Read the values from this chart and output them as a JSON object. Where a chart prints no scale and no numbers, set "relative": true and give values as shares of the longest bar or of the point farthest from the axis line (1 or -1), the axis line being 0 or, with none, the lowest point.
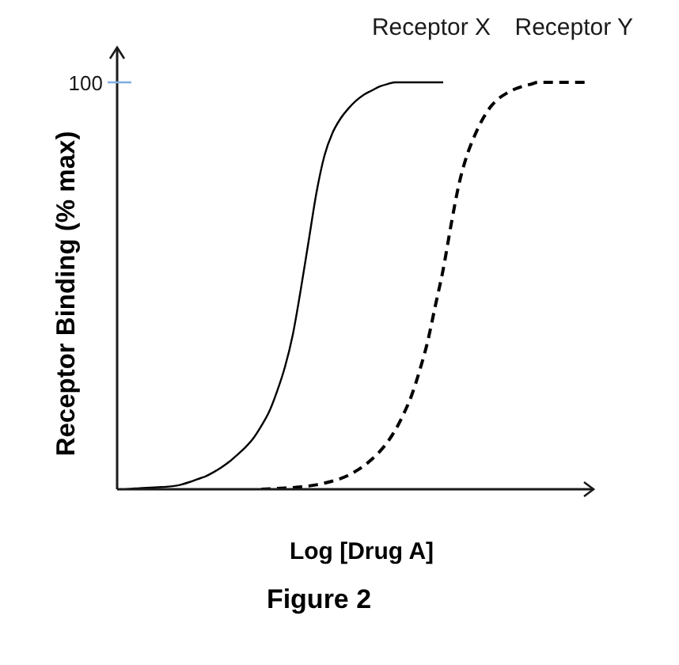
{
  "chart_data": {
    "type": "line",
    "relative": true,
    "xlabel": "Log [Drug A]",
    "ylabel": "Receptor Binding (% max)",
    "annotations": [
      "100",
      "Figure 2"
    ],
    "categories": [
      null,
      null,
      null,
      null,
      null,
      null,
      null,
      null,
      null,
      null,
      null,
      null,
      null,
      null,
      null,
      null,
      null,
      null,
      null,
      null,
      null,
      null,
      null,
      null,
      null,
      null,
      null,
      null,
      null,
      null,
      null,
      null,
      null,
      null,
      null,
      null,
      null,
      null,
      null,
      null,
      null,
      null,
      null,
      null,
      null,
      null,
      null,
      null,
      null,
      null,
      null,
      null,
      null,
      null,
      null,
      null,
      null,
      null,
      null,
      null
    ],
    "marker": "none",
    "series": [
      {
        "name": "Receptor X",
        "color": "#000000",
        "line_style": "solid",
        "values": [
          0,
          0.002,
          0.003,
          0.004,
          0.005,
          0.006,
          0.008,
          0.012,
          0.018,
          0.025,
          0.032,
          0.042,
          0.054,
          0.068,
          0.085,
          0.103,
          0.125,
          0.155,
          0.19,
          0.24,
          0.3,
          0.38,
          0.49,
          0.61,
          0.73,
          0.82,
          0.875,
          0.91,
          0.935,
          0.955,
          0.97,
          0.98,
          0.99,
          0.996,
          1,
          1,
          1,
          1,
          1,
          1,
          1,
          null,
          null,
          null,
          null,
          null,
          null,
          null,
          null,
          null,
          null,
          null,
          null,
          null,
          null,
          null,
          null,
          null,
          null,
          null
        ]
      },
      {
        "name": "Receptor Y",
        "color": "#000000",
        "line_style": "dashed",
        "values": [
          null,
          null,
          null,
          null,
          null,
          null,
          null,
          null,
          null,
          null,
          null,
          null,
          null,
          null,
          null,
          null,
          null,
          0,
          0.001,
          0.002,
          0.003,
          0.004,
          0.006,
          0.008,
          0.011,
          0.015,
          0.02,
          0.026,
          0.034,
          0.045,
          0.058,
          0.074,
          0.093,
          0.117,
          0.147,
          0.185,
          0.23,
          0.29,
          0.36,
          0.45,
          0.54,
          0.65,
          0.75,
          0.82,
          0.87,
          0.91,
          0.94,
          0.96,
          0.973,
          0.983,
          0.99,
          0.995,
          1,
          1,
          1,
          1,
          1,
          1,
          1,
          null
        ]
      }
    ]
  }
}
